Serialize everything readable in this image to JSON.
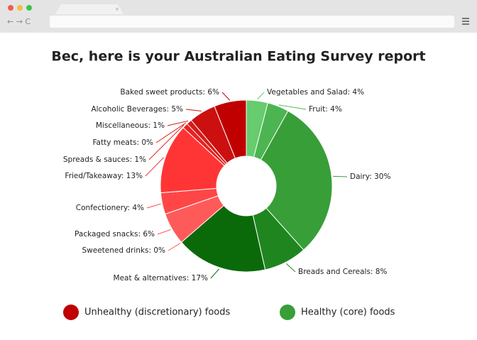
{
  "chart_data": {
    "type": "donut",
    "title": "Bec, here is your Australian Eating Survey report",
    "values": [
      4,
      4,
      30,
      8,
      17,
      0,
      6,
      4,
      13,
      1,
      0,
      1,
      5,
      6
    ],
    "value_labels": [
      "Vegetables and Salad: 4%",
      "Fruit: 4%",
      "Dairy: 30%",
      "Breads and Cereals: 8%",
      "Meat & alternatives: 17%",
      "Sweetened drinks: 0%",
      "Packaged snacks: 6%",
      "Confectionery: 4%",
      "Fried/Takeaway: 13%",
      "Spreads & sauces: 1%",
      "Fatty meats: 0%",
      "Miscellaneous: 1%",
      "Alcoholic Beverages: 5%",
      "Baked sweet products: 6%"
    ],
    "colors": [
      "#66cc6e",
      "#4cb552",
      "#389e38",
      "#1f861f",
      "#0a6a0a",
      "#ff5a5a",
      "#ff5a5a",
      "#ff4646",
      "#ff3535",
      "#e82222",
      "#dd1c1c",
      "#d61a1a",
      "#cc1010",
      "#c00000"
    ],
    "legend": [
      {
        "label": "Unhealthy (discretionary) foods",
        "color": "#c00000"
      },
      {
        "label": "Healthy (core) foods",
        "color": "#389e38"
      }
    ]
  }
}
